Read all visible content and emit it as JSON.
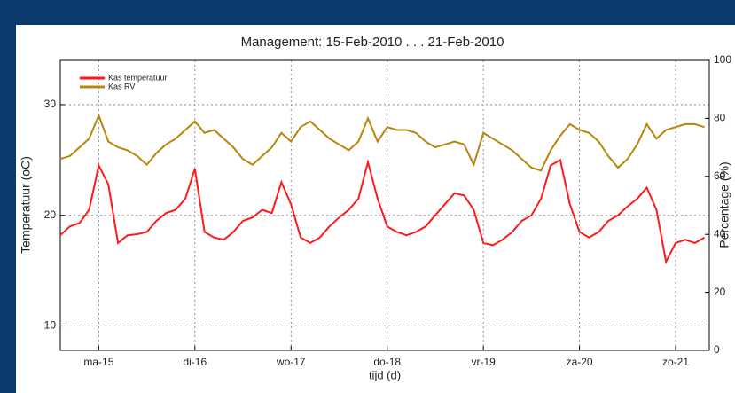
{
  "chart_data": {
    "type": "line",
    "title": "Management: 15-Feb-2010 . . . 21-Feb-2010",
    "xlabel": "tijd (d)",
    "ylabel": "Temperatuur (oC)",
    "y2label": "Percentage (%)",
    "x": [
      -0.4,
      -0.3,
      -0.2,
      -0.1,
      0.0,
      0.1,
      0.2,
      0.3,
      0.4,
      0.5,
      0.6,
      0.7,
      0.8,
      0.9,
      1.0,
      1.1,
      1.2,
      1.3,
      1.4,
      1.5,
      1.6,
      1.7,
      1.8,
      1.9,
      2.0,
      2.1,
      2.2,
      2.3,
      2.4,
      2.5,
      2.6,
      2.7,
      2.8,
      2.9,
      3.0,
      3.1,
      3.2,
      3.3,
      3.4,
      3.5,
      3.6,
      3.7,
      3.8,
      3.9,
      4.0,
      4.1,
      4.2,
      4.3,
      4.4,
      4.5,
      4.6,
      4.7,
      4.8,
      4.9,
      5.0,
      5.1,
      5.2,
      5.3,
      5.4,
      5.5,
      5.6,
      5.7,
      5.8,
      5.9,
      6.0,
      6.1,
      6.2,
      6.3
    ],
    "series": [
      {
        "name": "Kas temperatuur",
        "color": "#ff1a1a",
        "values": [
          18.2,
          19,
          19.3,
          20.5,
          24.5,
          22.8,
          17.5,
          18.2,
          18.3,
          18.5,
          19.5,
          20.2,
          20.5,
          21.5,
          24.2,
          18.5,
          18,
          17.8,
          18.5,
          19.5,
          19.8,
          20.5,
          20.2,
          23,
          21,
          18,
          17.5,
          18,
          19,
          19.8,
          20.5,
          21.5,
          24.8,
          21.5,
          19,
          18.5,
          18.2,
          18.5,
          19,
          20,
          21,
          22,
          21.8,
          20.5,
          17.5,
          17.3,
          17.8,
          18.5,
          19.5,
          20,
          21.5,
          24.5,
          25,
          21,
          18.5,
          18,
          18.5,
          19.5,
          20,
          20.8,
          21.5,
          22.5,
          20.5,
          15.8,
          17.5,
          17.8,
          17.5,
          18
        ]
      },
      {
        "name": "Kas RV",
        "color": "#b8860b",
        "axis": "y2",
        "values": [
          66,
          67,
          70,
          73,
          81,
          72,
          70,
          69,
          67,
          64,
          68,
          71,
          73,
          76,
          79,
          75,
          76,
          73,
          70,
          66,
          64,
          67,
          70,
          75,
          72,
          77,
          79,
          76,
          73,
          71,
          69,
          72,
          80,
          72,
          77,
          76,
          76,
          75,
          72,
          70,
          71,
          72,
          71,
          64,
          75,
          73,
          71,
          69,
          66,
          63,
          62,
          69,
          74,
          78,
          76,
          75,
          72,
          67,
          63,
          66,
          71,
          78,
          73,
          76,
          77,
          78,
          78,
          77
        ]
      }
    ],
    "xlim": [
      -0.4,
      6.35
    ],
    "xticks": [
      {
        "value": 0,
        "label": "ma-15"
      },
      {
        "value": 1,
        "label": "di-16"
      },
      {
        "value": 2,
        "label": "wo-17"
      },
      {
        "value": 3,
        "label": "do-18"
      },
      {
        "value": 4,
        "label": "vr-19"
      },
      {
        "value": 5,
        "label": "za-20"
      },
      {
        "value": 6,
        "label": "zo-21"
      }
    ],
    "ylim": [
      7.8,
      34
    ],
    "yticks": [
      10,
      20,
      30
    ],
    "y2lim": [
      0,
      100
    ],
    "y2ticks": [
      0,
      20,
      40,
      60,
      80,
      100
    ],
    "grid": true,
    "legend": "upper left"
  }
}
